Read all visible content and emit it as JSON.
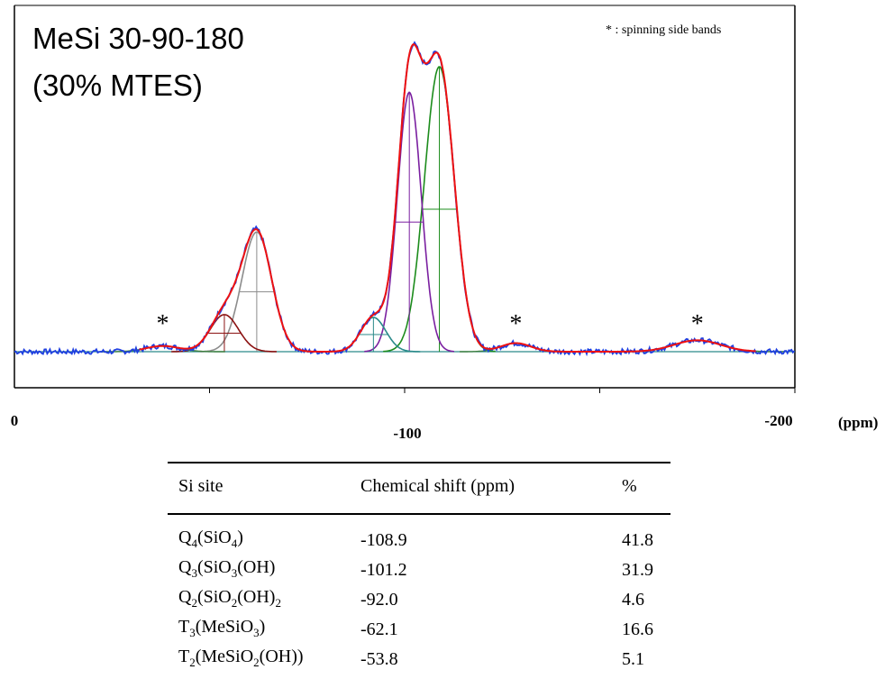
{
  "chart_data": {
    "type": "line",
    "title": "MeSi 30-90-180",
    "subtitle": "(30% MTES)",
    "annotation": "* : spinning side bands",
    "xlabel": "(ppm)",
    "xlim": [
      0,
      -200
    ],
    "x_ticks": [
      {
        "value": 0,
        "label": "0"
      },
      {
        "value": -100,
        "label": "-100"
      },
      {
        "value": -200,
        "label": "-200"
      }
    ],
    "y_axis_shown": false,
    "grid": false,
    "colors": {
      "envelope": "#ee1111",
      "experimental": "#1f3fe0",
      "Q4": "#1c8c1c",
      "Q3": "#7a1fa0",
      "Q2": "#2a8a8a",
      "T3": "#8c8c8c",
      "T2": "#8b1212",
      "baseline": "#2a8a8a",
      "sideband": "#3f7f3f"
    },
    "peak_height_unit": "relative intensity (Q4 = 1.00)",
    "components": [
      {
        "site": "Q4",
        "center": -108.9,
        "fwhm": 9.0,
        "height": 1.0
      },
      {
        "site": "Q3",
        "center": -101.2,
        "fwhm": 7.2,
        "height": 0.91
      },
      {
        "site": "Q2",
        "center": -92.0,
        "fwhm": 7.5,
        "height": 0.12
      },
      {
        "site": "T3",
        "center": -62.1,
        "fwhm": 9.0,
        "height": 0.42
      },
      {
        "site": "T2",
        "center": -53.8,
        "fwhm": 8.5,
        "height": 0.13
      }
    ],
    "sidebands": [
      {
        "center": -38.0,
        "fwhm": 10.0,
        "height": 0.02
      },
      {
        "center": -128.5,
        "fwhm": 9.0,
        "height": 0.03
      },
      {
        "center": -175.0,
        "fwhm": 14.0,
        "height": 0.04
      }
    ],
    "sideband_marker": "*",
    "sideband_marker_positions": [
      -38.0,
      -128.5,
      -175.0
    ]
  },
  "table": {
    "headers": [
      "Si site",
      "Chemical shift (ppm)",
      "%"
    ],
    "rows": [
      {
        "site_main": "Q",
        "site_sub": "4",
        "site_rest": "(SiO",
        "site_sub2": "4",
        "site_end": ")",
        "shift": "-108.9",
        "percent": "41.8"
      },
      {
        "site_main": "Q",
        "site_sub": "3",
        "site_rest": "(SiO",
        "site_sub2": "3",
        "site_end": "(OH)",
        "shift": "-101.2",
        "percent": "31.9"
      },
      {
        "site_main": "Q",
        "site_sub": "2",
        "site_rest": "(SiO",
        "site_sub2": "2",
        "site_end": "(OH)",
        "site_sub3": "2",
        "shift": "-92.0",
        "percent": "4.6"
      },
      {
        "site_main": "T",
        "site_sub": "3",
        "site_rest": "(MeSiO",
        "site_sub2": "3",
        "site_end": ")",
        "shift": "-62.1",
        "percent": "16.6"
      },
      {
        "site_main": "T",
        "site_sub": "2",
        "site_rest": "(MeSiO",
        "site_sub2": "2",
        "site_end": "(OH))",
        "shift": "-53.8",
        "percent": "5.1"
      }
    ]
  }
}
